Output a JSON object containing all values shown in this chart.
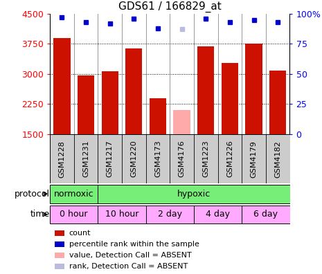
{
  "title": "GDS61 / 166829_at",
  "samples": [
    "GSM1228",
    "GSM1231",
    "GSM1217",
    "GSM1220",
    "GSM4173",
    "GSM4176",
    "GSM1223",
    "GSM1226",
    "GSM4179",
    "GSM4182"
  ],
  "counts": [
    3900,
    2970,
    3060,
    3630,
    2390,
    2100,
    3690,
    3270,
    3750,
    3090
  ],
  "ranks": [
    97,
    93,
    92,
    96,
    88,
    87,
    96,
    93,
    95,
    93
  ],
  "absent": [
    false,
    false,
    false,
    false,
    false,
    true,
    false,
    false,
    false,
    false
  ],
  "ylim_left": [
    1500,
    4500
  ],
  "ylim_right": [
    0,
    100
  ],
  "yticks_left": [
    1500,
    2250,
    3000,
    3750,
    4500
  ],
  "yticks_right": [
    0,
    25,
    50,
    75,
    100
  ],
  "bar_color_normal": "#cc1100",
  "bar_color_absent": "#ffaaaa",
  "rank_color_normal": "#0000cc",
  "rank_color_absent": "#bbbbdd",
  "grid_lines": [
    2250,
    3000,
    3750
  ],
  "protocol_bands": [
    {
      "label": "normoxic",
      "cols": [
        0,
        1
      ],
      "color": "#77ee77"
    },
    {
      "label": "hypoxic",
      "cols": [
        2,
        3,
        4,
        5,
        6,
        7,
        8,
        9
      ],
      "color": "#77ee77"
    }
  ],
  "time_bands": [
    {
      "label": "0 hour",
      "cols": [
        0,
        1
      ],
      "color": "#ffaaff"
    },
    {
      "label": "10 hour",
      "cols": [
        2,
        3
      ],
      "color": "#ffaaff"
    },
    {
      "label": "2 day",
      "cols": [
        4,
        5
      ],
      "color": "#ffaaff"
    },
    {
      "label": "4 day",
      "cols": [
        6,
        7
      ],
      "color": "#ffaaff"
    },
    {
      "label": "6 day",
      "cols": [
        8,
        9
      ],
      "color": "#ffaaff"
    }
  ],
  "legend_items": [
    {
      "label": "count",
      "color": "#cc1100"
    },
    {
      "label": "percentile rank within the sample",
      "color": "#0000cc"
    },
    {
      "label": "value, Detection Call = ABSENT",
      "color": "#ffaaaa"
    },
    {
      "label": "rank, Detection Call = ABSENT",
      "color": "#bbbbdd"
    }
  ],
  "sample_bg_color": "#cccccc",
  "col_sep_color": "#888888",
  "label_fontsize": 9,
  "tick_fontsize": 9,
  "sample_fontsize": 8,
  "title_fontsize": 11
}
